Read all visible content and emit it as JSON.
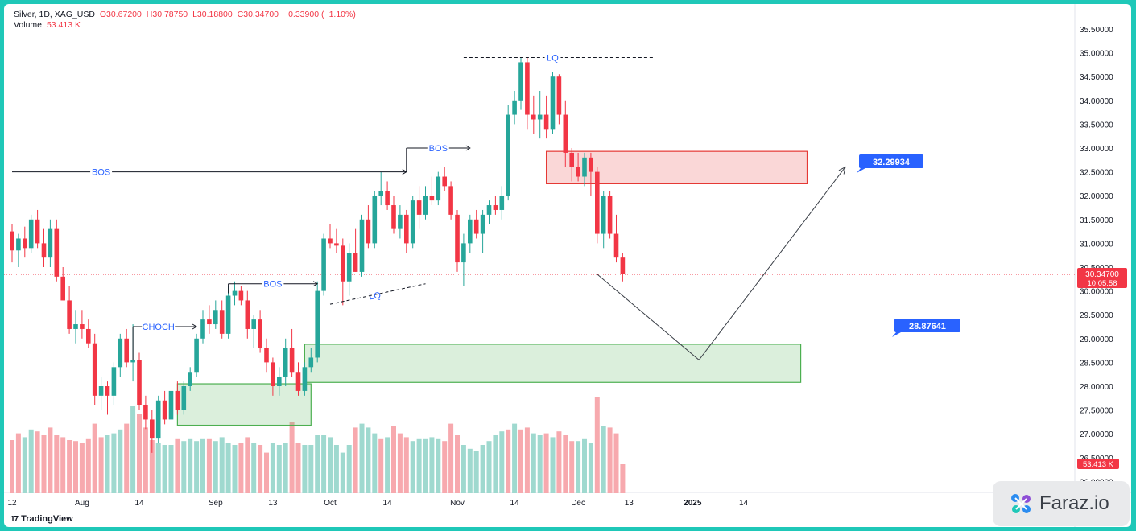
{
  "legend": {
    "symbol": "Silver, 1D, XAG_USD",
    "open": "O30.67200",
    "high": "H30.78750",
    "low": "L30.18800",
    "close": "C30.34700",
    "change": "−0.33900 (−1.10%)",
    "volume_label": "Volume",
    "volume_value": "53.413 K"
  },
  "branding": {
    "tradingview": "TradingView",
    "faraz": "Faraz.io"
  },
  "colors": {
    "up": "#26a69a",
    "down": "#f23645",
    "vol_up": "#9fd9cf",
    "vol_down": "#f7a9ae",
    "annotation": "#2962ff",
    "demand_zone": "#4caf50",
    "supply_zone": "#e53935"
  },
  "chart_data": {
    "type": "candlestick",
    "instrument": "XAG_USD",
    "timeframe": "1D",
    "y_ticks": [
      "35.50000",
      "35.00000",
      "34.50000",
      "34.00000",
      "33.50000",
      "33.00000",
      "32.50000",
      "32.00000",
      "31.50000",
      "31.00000",
      "30.50000",
      "30.00000",
      "29.50000",
      "29.00000",
      "28.50000",
      "28.00000",
      "27.50000",
      "27.00000",
      "26.50000",
      "26.00000"
    ],
    "ylim": [
      25.9,
      35.9
    ],
    "x_labels": [
      {
        "label": "12",
        "i": 0
      },
      {
        "label": "Aug",
        "i": 11
      },
      {
        "label": "14",
        "i": 20
      },
      {
        "label": "Sep",
        "i": 32
      },
      {
        "label": "13",
        "i": 41
      },
      {
        "label": "Oct",
        "i": 50
      },
      {
        "label": "14",
        "i": 59
      },
      {
        "label": "Nov",
        "i": 70
      },
      {
        "label": "14",
        "i": 79
      },
      {
        "label": "Dec",
        "i": 89
      },
      {
        "label": "13",
        "i": 97
      },
      {
        "label": "2025",
        "i": 107
      },
      {
        "label": "14",
        "i": 115
      }
    ],
    "last_price": {
      "value": "30.34700",
      "countdown": "10:05:58",
      "price": 30.347
    },
    "volume_last": "53.413 K",
    "candles": [
      [
        31.25,
        31.4,
        30.6,
        30.85
      ],
      [
        30.85,
        31.2,
        30.5,
        31.1
      ],
      [
        31.1,
        31.35,
        30.7,
        30.9
      ],
      [
        30.9,
        31.6,
        30.8,
        31.5
      ],
      [
        31.5,
        31.7,
        30.9,
        31.0
      ],
      [
        31.0,
        31.3,
        30.5,
        30.7
      ],
      [
        30.7,
        31.5,
        30.5,
        31.3
      ],
      [
        31.3,
        31.5,
        30.2,
        30.3
      ],
      [
        30.3,
        30.5,
        29.8,
        29.8
      ],
      [
        29.8,
        30.1,
        29.1,
        29.2
      ],
      [
        29.2,
        29.6,
        28.9,
        29.3
      ],
      [
        29.3,
        29.6,
        29.0,
        29.2
      ],
      [
        29.2,
        29.4,
        28.8,
        28.9
      ],
      [
        28.9,
        29.1,
        27.6,
        27.8
      ],
      [
        27.8,
        28.2,
        27.5,
        28.0
      ],
      [
        28.0,
        28.1,
        27.4,
        27.8
      ],
      [
        27.8,
        28.5,
        27.6,
        28.4
      ],
      [
        28.4,
        29.1,
        28.2,
        29.0
      ],
      [
        29.0,
        29.2,
        28.4,
        28.5
      ],
      [
        28.5,
        29.3,
        28.1,
        28.55
      ],
      [
        28.55,
        28.7,
        27.5,
        27.6
      ],
      [
        27.6,
        27.8,
        27.1,
        27.3
      ],
      [
        27.3,
        27.5,
        26.6,
        26.9
      ],
      [
        26.9,
        27.8,
        26.8,
        27.7
      ],
      [
        27.7,
        27.9,
        27.2,
        27.3
      ],
      [
        27.3,
        28.0,
        27.2,
        27.9
      ],
      [
        27.9,
        28.1,
        27.4,
        27.5
      ],
      [
        27.5,
        28.1,
        27.4,
        28.0
      ],
      [
        28.0,
        28.4,
        27.9,
        28.3
      ],
      [
        28.3,
        29.1,
        28.2,
        29.0
      ],
      [
        29.0,
        29.6,
        28.9,
        29.4
      ],
      [
        29.4,
        29.7,
        29.1,
        29.3
      ],
      [
        29.3,
        29.8,
        29.2,
        29.6
      ],
      [
        29.6,
        29.8,
        29.0,
        29.1
      ],
      [
        29.1,
        30.1,
        29.0,
        29.9
      ],
      [
        29.9,
        30.2,
        29.7,
        30.0
      ],
      [
        30.0,
        30.1,
        29.7,
        29.8
      ],
      [
        29.8,
        30.0,
        29.0,
        29.2
      ],
      [
        29.2,
        29.5,
        28.8,
        29.4
      ],
      [
        29.4,
        29.6,
        28.7,
        28.8
      ],
      [
        28.8,
        29.0,
        28.3,
        28.5
      ],
      [
        28.5,
        28.6,
        27.8,
        28.0
      ],
      [
        28.0,
        28.4,
        27.8,
        28.2
      ],
      [
        28.2,
        29.0,
        28.0,
        28.8
      ],
      [
        28.8,
        29.2,
        28.2,
        28.3
      ],
      [
        28.3,
        28.5,
        27.8,
        27.9
      ],
      [
        27.9,
        28.5,
        27.8,
        28.4
      ],
      [
        28.4,
        28.8,
        28.3,
        28.6
      ],
      [
        28.6,
        30.2,
        28.5,
        30.0
      ],
      [
        30.0,
        31.2,
        29.9,
        31.1
      ],
      [
        31.1,
        31.4,
        30.9,
        31.0
      ],
      [
        31.0,
        31.3,
        30.8,
        30.95
      ],
      [
        30.95,
        31.1,
        29.7,
        30.2
      ],
      [
        30.2,
        31.0,
        29.9,
        30.8
      ],
      [
        30.8,
        31.3,
        30.4,
        30.4
      ],
      [
        30.4,
        31.6,
        30.3,
        31.5
      ],
      [
        31.5,
        31.8,
        30.9,
        31.0
      ],
      [
        31.0,
        32.1,
        30.9,
        32.0
      ],
      [
        32.0,
        32.5,
        31.8,
        32.1
      ],
      [
        32.1,
        32.3,
        31.7,
        31.8
      ],
      [
        31.8,
        32.0,
        31.2,
        31.3
      ],
      [
        31.3,
        31.8,
        31.1,
        31.6
      ],
      [
        31.6,
        31.7,
        30.8,
        31.0
      ],
      [
        31.0,
        32.0,
        30.9,
        31.9
      ],
      [
        31.9,
        32.2,
        31.3,
        31.6
      ],
      [
        31.6,
        32.2,
        31.5,
        32.0
      ],
      [
        32.0,
        32.4,
        31.8,
        31.9
      ],
      [
        31.9,
        32.5,
        31.8,
        32.4
      ],
      [
        32.4,
        32.6,
        32.1,
        32.2
      ],
      [
        32.2,
        32.3,
        31.5,
        31.6
      ],
      [
        31.6,
        31.7,
        30.4,
        30.6
      ],
      [
        30.6,
        31.2,
        30.1,
        31.0
      ],
      [
        31.0,
        31.6,
        30.8,
        31.5
      ],
      [
        31.5,
        31.7,
        31.1,
        31.2
      ],
      [
        31.2,
        31.7,
        30.8,
        31.6
      ],
      [
        31.6,
        31.9,
        31.4,
        31.8
      ],
      [
        31.8,
        32.0,
        31.6,
        31.7
      ],
      [
        31.7,
        32.2,
        31.5,
        32.0
      ],
      [
        32.0,
        33.9,
        31.9,
        33.7
      ],
      [
        33.7,
        34.2,
        33.5,
        34.0
      ],
      [
        34.0,
        34.9,
        33.8,
        34.8
      ],
      [
        34.8,
        34.9,
        33.4,
        33.7
      ],
      [
        33.7,
        34.1,
        33.3,
        33.6
      ],
      [
        33.6,
        34.2,
        33.2,
        33.7
      ],
      [
        33.7,
        34.1,
        33.2,
        33.4
      ],
      [
        33.4,
        34.6,
        33.3,
        34.5
      ],
      [
        34.5,
        34.55,
        33.5,
        33.7
      ],
      [
        33.7,
        34.0,
        32.6,
        32.9
      ],
      [
        32.9,
        33.0,
        32.3,
        32.6
      ],
      [
        32.6,
        32.9,
        32.3,
        32.4
      ],
      [
        32.4,
        32.9,
        32.2,
        32.8
      ],
      [
        32.8,
        32.9,
        32.0,
        32.5
      ],
      [
        32.5,
        32.6,
        31.0,
        31.2
      ],
      [
        31.2,
        32.1,
        30.9,
        32.0
      ],
      [
        32.0,
        32.1,
        31.1,
        31.2
      ],
      [
        31.2,
        31.6,
        30.6,
        30.7
      ],
      [
        30.7,
        30.8,
        30.2,
        30.35
      ]
    ],
    "volumes": [
      [
        0.55,
        false
      ],
      [
        0.62,
        false
      ],
      [
        0.58,
        true
      ],
      [
        0.66,
        true
      ],
      [
        0.64,
        false
      ],
      [
        0.6,
        false
      ],
      [
        0.68,
        false
      ],
      [
        0.6,
        false
      ],
      [
        0.58,
        false
      ],
      [
        0.55,
        false
      ],
      [
        0.54,
        false
      ],
      [
        0.52,
        false
      ],
      [
        0.56,
        false
      ],
      [
        0.72,
        false
      ],
      [
        0.58,
        false
      ],
      [
        0.6,
        true
      ],
      [
        0.62,
        true
      ],
      [
        0.66,
        true
      ],
      [
        0.72,
        false
      ],
      [
        0.9,
        true
      ],
      [
        0.82,
        false
      ],
      [
        0.68,
        false
      ],
      [
        0.55,
        false
      ],
      [
        0.52,
        true
      ],
      [
        0.5,
        true
      ],
      [
        0.5,
        true
      ],
      [
        0.56,
        false
      ],
      [
        0.54,
        true
      ],
      [
        0.56,
        true
      ],
      [
        0.54,
        true
      ],
      [
        0.56,
        true
      ],
      [
        0.56,
        false
      ],
      [
        0.54,
        true
      ],
      [
        0.58,
        true
      ],
      [
        0.52,
        true
      ],
      [
        0.5,
        true
      ],
      [
        0.52,
        false
      ],
      [
        0.58,
        false
      ],
      [
        0.52,
        true
      ],
      [
        0.5,
        false
      ],
      [
        0.42,
        false
      ],
      [
        0.52,
        true
      ],
      [
        0.5,
        true
      ],
      [
        0.52,
        true
      ],
      [
        0.74,
        false
      ],
      [
        0.52,
        false
      ],
      [
        0.5,
        true
      ],
      [
        0.5,
        true
      ],
      [
        0.6,
        true
      ],
      [
        0.6,
        true
      ],
      [
        0.58,
        true
      ],
      [
        0.5,
        true
      ],
      [
        0.42,
        true
      ],
      [
        0.5,
        true
      ],
      [
        0.68,
        false
      ],
      [
        0.72,
        true
      ],
      [
        0.68,
        true
      ],
      [
        0.62,
        true
      ],
      [
        0.56,
        false
      ],
      [
        0.58,
        true
      ],
      [
        0.7,
        false
      ],
      [
        0.62,
        false
      ],
      [
        0.58,
        false
      ],
      [
        0.54,
        true
      ],
      [
        0.56,
        true
      ],
      [
        0.56,
        true
      ],
      [
        0.58,
        true
      ],
      [
        0.56,
        true
      ],
      [
        0.54,
        false
      ],
      [
        0.72,
        false
      ],
      [
        0.6,
        false
      ],
      [
        0.5,
        true
      ],
      [
        0.46,
        true
      ],
      [
        0.44,
        true
      ],
      [
        0.5,
        true
      ],
      [
        0.54,
        true
      ],
      [
        0.6,
        true
      ],
      [
        0.64,
        true
      ],
      [
        0.66,
        false
      ],
      [
        0.72,
        true
      ],
      [
        0.66,
        false
      ],
      [
        0.68,
        false
      ],
      [
        0.62,
        true
      ],
      [
        0.6,
        true
      ],
      [
        0.62,
        false
      ],
      [
        0.58,
        true
      ],
      [
        0.64,
        false
      ],
      [
        0.6,
        false
      ],
      [
        0.54,
        false
      ],
      [
        0.54,
        true
      ],
      [
        0.56,
        true
      ],
      [
        0.52,
        true
      ],
      [
        1.0,
        false
      ],
      [
        0.7,
        true
      ],
      [
        0.68,
        false
      ],
      [
        0.62,
        false
      ],
      [
        0.3,
        false
      ]
    ],
    "annotations": {
      "lines": [
        {
          "label": "BOS",
          "price": 32.5,
          "from": 0,
          "to": 62,
          "label_at": 14
        },
        {
          "label": "BOS",
          "price": 33.0,
          "from": 62,
          "to": 72,
          "start_price": 32.5,
          "label_at": 67
        },
        {
          "label": "BOS",
          "price": 30.15,
          "from": 34,
          "to": 48,
          "start_price": 29.95,
          "label_at": 41
        },
        {
          "label": "CHOCH",
          "price": 29.25,
          "from": 19,
          "to": 29,
          "start_price": 28.55,
          "label_at": 23
        },
        {
          "label": "LQ",
          "price": 34.9,
          "from": 71,
          "to": 101,
          "label_at": 85
        },
        {
          "label": "LQ",
          "from": 50,
          "to": 65,
          "start_price": 29.72,
          "end_price": 30.15,
          "label_at": 57
        }
      ],
      "supply_zone": {
        "top": 32.93,
        "bottom": 32.25,
        "from": 84,
        "to": 125,
        "label": "32.29934"
      },
      "demand_zone_1": {
        "top": 28.05,
        "bottom": 27.18,
        "from": 26,
        "to": 47
      },
      "demand_zone_2": {
        "top": 28.88,
        "bottom": 28.08,
        "from": 46,
        "to": 124,
        "label": "28.87641"
      },
      "projection": [
        [
          92,
          30.35
        ],
        [
          108,
          28.55
        ],
        [
          131,
          32.6
        ]
      ]
    }
  }
}
